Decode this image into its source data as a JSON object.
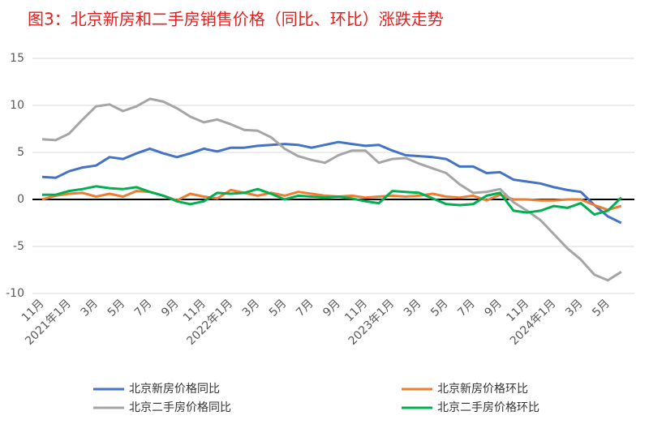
{
  "chart_data": {
    "type": "line",
    "title": "图3：北京新房和二手房销售价格（同比、环比）涨跌走势",
    "categories": [
      "11月",
      null,
      "2021年1月",
      null,
      "3月",
      null,
      "5月",
      null,
      "7月",
      null,
      "9月",
      null,
      "11月",
      null,
      "2022年1月",
      null,
      "3月",
      null,
      "5月",
      null,
      "7月",
      null,
      "9月",
      null,
      "11月",
      null,
      "2023年1月",
      null,
      "3月",
      null,
      "5月",
      null,
      "7月",
      null,
      "9月",
      null,
      "11月",
      null,
      "2024年1月",
      null,
      "3月",
      null,
      "5月",
      null
    ],
    "series": [
      {
        "name": "北京新房价格同比",
        "color": "#4472c4",
        "values": [
          2.4,
          2.3,
          3.0,
          3.4,
          3.6,
          4.5,
          4.3,
          4.9,
          5.4,
          4.9,
          4.5,
          4.9,
          5.4,
          5.1,
          5.5,
          5.5,
          5.7,
          5.8,
          5.9,
          5.8,
          5.5,
          5.8,
          6.1,
          5.9,
          5.7,
          5.8,
          5.2,
          4.7,
          4.6,
          4.5,
          4.3,
          3.5,
          3.5,
          2.8,
          2.9,
          2.1,
          1.9,
          1.7,
          1.3,
          1.0,
          0.8,
          -0.6,
          -1.8,
          -2.5
        ]
      },
      {
        "name": "北京新房价格环比",
        "color": "#ed7d31",
        "values": [
          0,
          0.4,
          0.6,
          0.7,
          0.3,
          0.6,
          0.3,
          0.9,
          0.8,
          0.4,
          -0.1,
          0.6,
          0.3,
          0.1,
          1.0,
          0.7,
          0.4,
          0.7,
          0.4,
          0.8,
          0.6,
          0.4,
          0.3,
          0.4,
          0.2,
          0.3,
          0.4,
          0.3,
          0.4,
          0.6,
          0.3,
          0.2,
          0.4,
          -0.1,
          0.5,
          0,
          0,
          -0.1,
          -0.1,
          0,
          0,
          -0.6,
          -1.1,
          -0.7
        ]
      },
      {
        "name": "北京二手房价格同比",
        "color": "#a5a5a5",
        "values": [
          6.4,
          6.3,
          7.0,
          8.5,
          9.9,
          10.1,
          9.4,
          9.9,
          10.7,
          10.4,
          9.7,
          8.8,
          8.2,
          8.5,
          8.0,
          7.4,
          7.3,
          6.6,
          5.4,
          4.6,
          4.2,
          3.9,
          4.7,
          5.2,
          5.2,
          3.9,
          4.3,
          4.4,
          3.8,
          3.3,
          2.8,
          1.6,
          0.7,
          0.8,
          1.1,
          -0.3,
          -1.2,
          -2.2,
          -3.7,
          -5.2,
          -6.4,
          -8.0,
          -8.6,
          -7.7
        ]
      },
      {
        "name": "北京二手房价格环比",
        "color": "#00b050",
        "values": [
          0.5,
          0.5,
          0.9,
          1.1,
          1.4,
          1.2,
          1.1,
          1.3,
          0.8,
          0.4,
          -0.2,
          -0.5,
          -0.2,
          0.7,
          0.6,
          0.7,
          1.1,
          0.6,
          0,
          0.4,
          0.3,
          0.2,
          0.3,
          0.1,
          -0.2,
          -0.4,
          0.9,
          0.8,
          0.7,
          0.1,
          -0.5,
          -0.6,
          -0.5,
          0.4,
          0.7,
          -1.2,
          -1.4,
          -1.2,
          -0.7,
          -0.9,
          -0.4,
          -1.6,
          -1.2,
          0.2
        ]
      }
    ],
    "ylim": [
      -10,
      15
    ],
    "yticks": [
      -10,
      -5,
      0,
      5,
      10,
      15
    ],
    "grid": true
  }
}
